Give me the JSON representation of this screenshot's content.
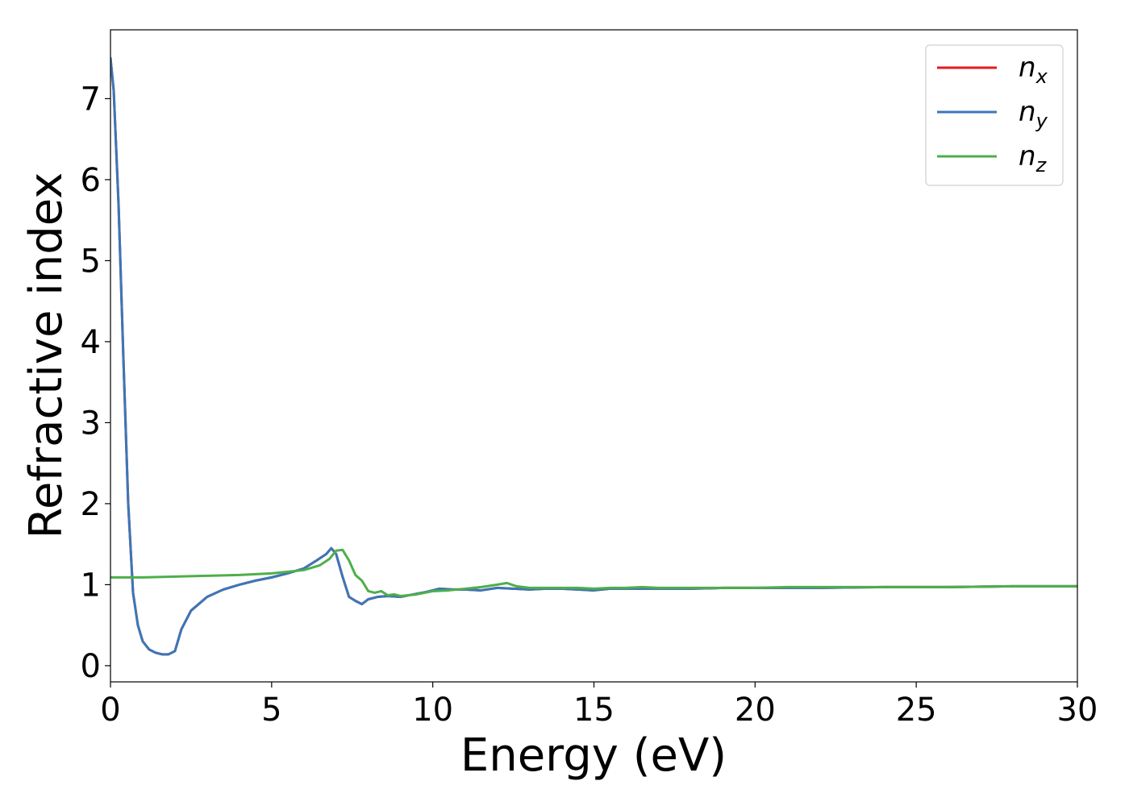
{
  "chart_data": {
    "type": "line",
    "title": "",
    "xlabel": "Energy (eV)",
    "ylabel": "Refractive index",
    "xlim": [
      0,
      30
    ],
    "ylim": [
      -0.2,
      7.85
    ],
    "xticks": [
      0,
      5,
      10,
      15,
      20,
      25,
      30
    ],
    "yticks": [
      0,
      1,
      2,
      3,
      4,
      5,
      6,
      7
    ],
    "xtick_labels": [
      "0",
      "5",
      "10",
      "15",
      "20",
      "25",
      "30"
    ],
    "ytick_labels": [
      "0",
      "1",
      "2",
      "3",
      "4",
      "5",
      "6",
      "7"
    ],
    "grid": false,
    "legend_position": "top-right",
    "series": [
      {
        "name": "n_x",
        "legend_main": "n",
        "legend_sub": "x",
        "color": "#e41a1c",
        "x": [
          0,
          0.1,
          0.25,
          0.4,
          0.55,
          0.7,
          0.85,
          1.0,
          1.2,
          1.4,
          1.6,
          1.8,
          2.0,
          2.2,
          2.5,
          3.0,
          3.5,
          4.0,
          4.5,
          5.0,
          5.5,
          6.0,
          6.4,
          6.7,
          6.85,
          7.0,
          7.2,
          7.4,
          7.6,
          7.8,
          8.0,
          8.3,
          8.6,
          9.0,
          9.4,
          9.8,
          10.2,
          10.6,
          11.0,
          11.5,
          12.0,
          12.5,
          13.0,
          13.5,
          14.0,
          14.5,
          15.0,
          15.5,
          16.0,
          17.0,
          18.0,
          19.0,
          20.0,
          22.0,
          24.0,
          26.0,
          28.0,
          30.0
        ],
        "y": [
          7.5,
          7.1,
          5.7,
          3.8,
          2.0,
          0.9,
          0.5,
          0.3,
          0.2,
          0.16,
          0.14,
          0.14,
          0.18,
          0.45,
          0.68,
          0.85,
          0.94,
          1.0,
          1.05,
          1.09,
          1.14,
          1.2,
          1.3,
          1.38,
          1.45,
          1.38,
          1.1,
          0.85,
          0.8,
          0.76,
          0.82,
          0.85,
          0.86,
          0.85,
          0.88,
          0.91,
          0.95,
          0.94,
          0.94,
          0.93,
          0.96,
          0.95,
          0.94,
          0.95,
          0.95,
          0.94,
          0.93,
          0.95,
          0.95,
          0.95,
          0.95,
          0.96,
          0.96,
          0.96,
          0.97,
          0.97,
          0.98,
          0.98
        ]
      },
      {
        "name": "n_y",
        "legend_main": "n",
        "legend_sub": "y",
        "color": "#3a77b8",
        "x": [
          0,
          0.1,
          0.25,
          0.4,
          0.55,
          0.7,
          0.85,
          1.0,
          1.2,
          1.4,
          1.6,
          1.8,
          2.0,
          2.2,
          2.5,
          3.0,
          3.5,
          4.0,
          4.5,
          5.0,
          5.5,
          6.0,
          6.4,
          6.7,
          6.85,
          7.0,
          7.2,
          7.4,
          7.6,
          7.8,
          8.0,
          8.3,
          8.6,
          9.0,
          9.4,
          9.8,
          10.2,
          10.6,
          11.0,
          11.5,
          12.0,
          12.5,
          13.0,
          13.5,
          14.0,
          14.5,
          15.0,
          15.5,
          16.0,
          17.0,
          18.0,
          19.0,
          20.0,
          22.0,
          24.0,
          26.0,
          28.0,
          30.0
        ],
        "y": [
          7.5,
          7.1,
          5.7,
          3.8,
          2.0,
          0.9,
          0.5,
          0.3,
          0.2,
          0.16,
          0.14,
          0.14,
          0.18,
          0.45,
          0.68,
          0.85,
          0.94,
          1.0,
          1.05,
          1.09,
          1.14,
          1.2,
          1.3,
          1.38,
          1.45,
          1.38,
          1.1,
          0.85,
          0.8,
          0.76,
          0.82,
          0.85,
          0.86,
          0.85,
          0.88,
          0.91,
          0.95,
          0.94,
          0.94,
          0.93,
          0.96,
          0.95,
          0.94,
          0.95,
          0.95,
          0.94,
          0.93,
          0.95,
          0.95,
          0.95,
          0.95,
          0.96,
          0.96,
          0.96,
          0.97,
          0.97,
          0.98,
          0.98
        ]
      },
      {
        "name": "n_z",
        "legend_main": "n",
        "legend_sub": "z",
        "color": "#4daf4a",
        "x": [
          0,
          1,
          2,
          3,
          4,
          5,
          5.5,
          6.0,
          6.5,
          6.8,
          7.0,
          7.2,
          7.4,
          7.6,
          7.8,
          8.0,
          8.2,
          8.4,
          8.6,
          8.8,
          9.0,
          9.5,
          10.0,
          10.5,
          11.0,
          11.5,
          12.0,
          12.3,
          12.6,
          13.0,
          13.5,
          14.0,
          14.5,
          15.0,
          15.5,
          16.0,
          16.5,
          17.0,
          18.0,
          19.0,
          20.0,
          21.0,
          22.0,
          23.0,
          24.0,
          26.0,
          28.0,
          30.0
        ],
        "y": [
          1.09,
          1.09,
          1.1,
          1.11,
          1.12,
          1.14,
          1.16,
          1.18,
          1.24,
          1.32,
          1.42,
          1.43,
          1.3,
          1.12,
          1.05,
          0.92,
          0.9,
          0.92,
          0.87,
          0.88,
          0.86,
          0.88,
          0.92,
          0.93,
          0.95,
          0.97,
          1.0,
          1.02,
          0.98,
          0.96,
          0.96,
          0.96,
          0.96,
          0.95,
          0.96,
          0.96,
          0.97,
          0.96,
          0.96,
          0.96,
          0.96,
          0.97,
          0.97,
          0.97,
          0.97,
          0.97,
          0.98,
          0.98
        ]
      }
    ]
  }
}
